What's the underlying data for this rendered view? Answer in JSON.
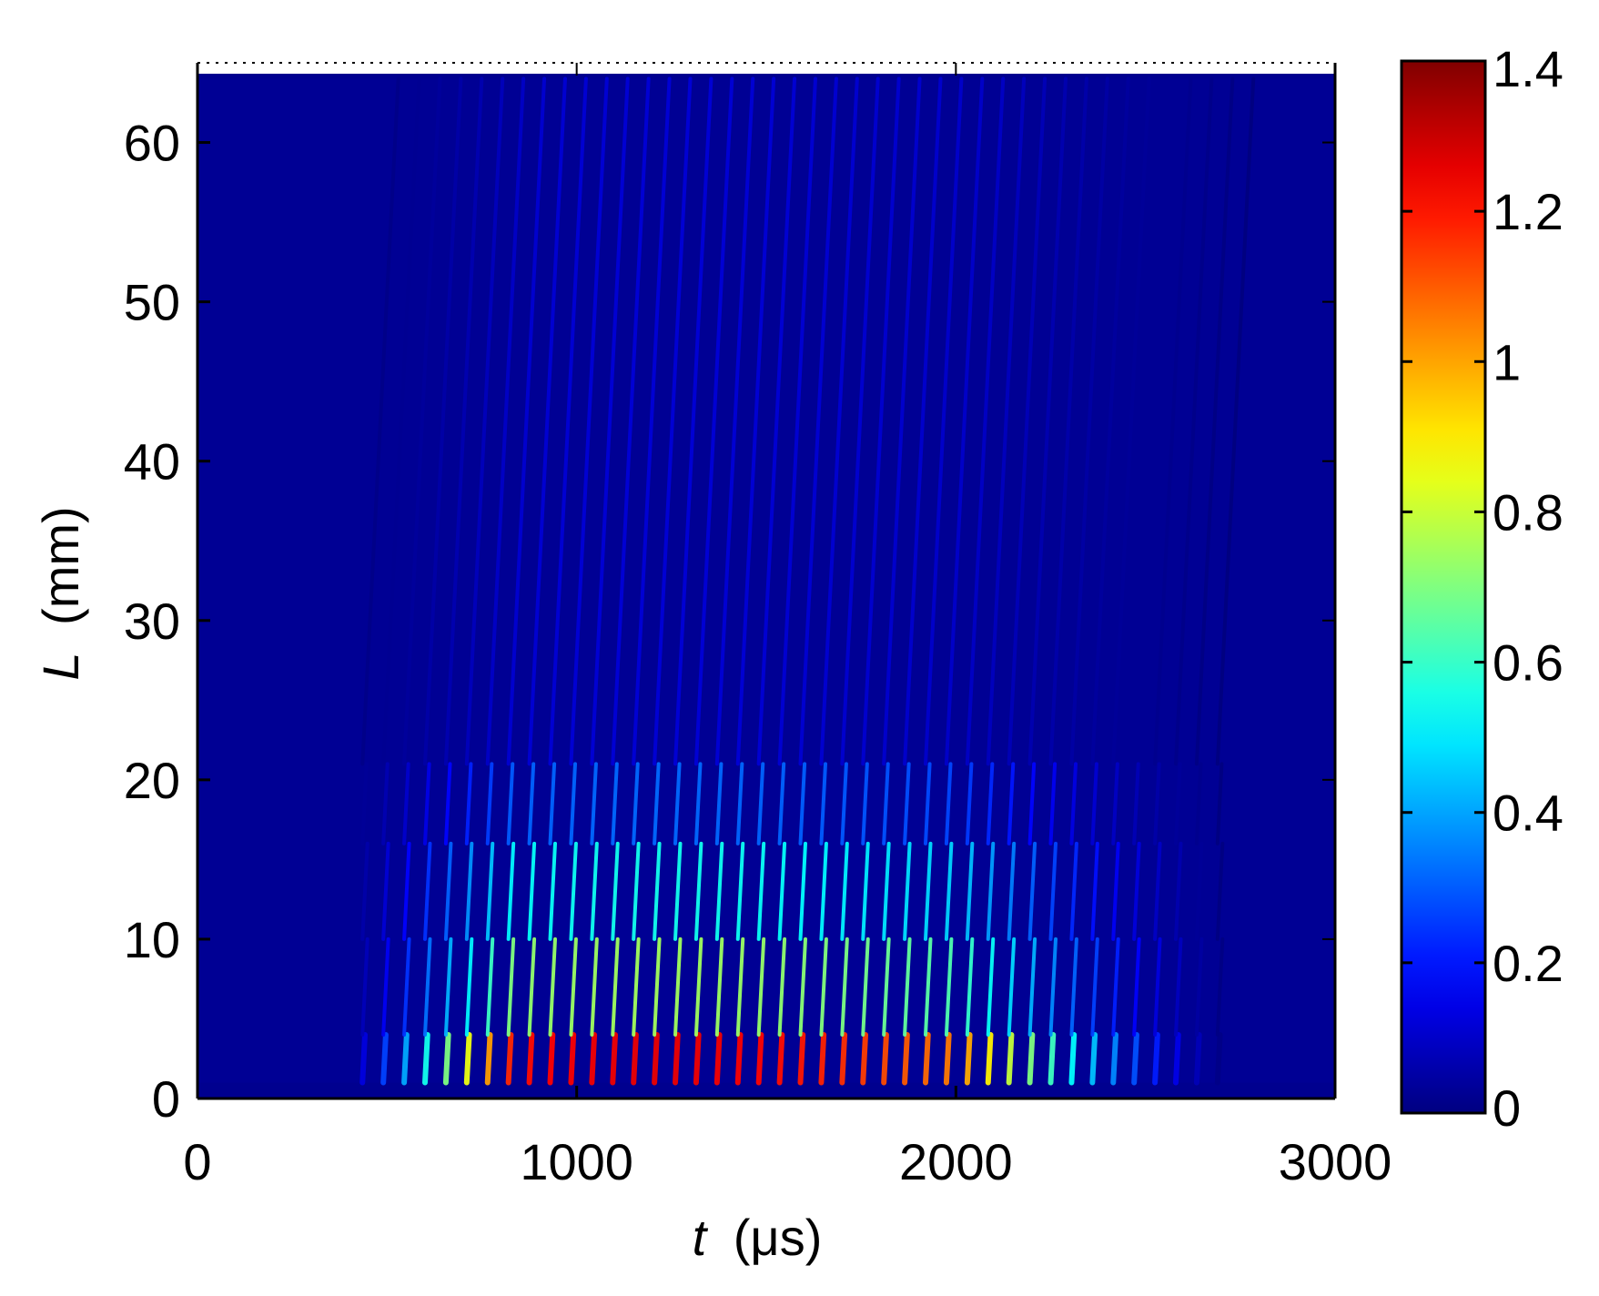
{
  "chart_data": {
    "type": "heatmap",
    "title": "",
    "xlabel": {
      "var": "t",
      "unit": "(μs)"
    },
    "ylabel": {
      "var": "L",
      "unit": "(mm)"
    },
    "xlim": [
      0,
      3000
    ],
    "ylim": [
      0,
      65
    ],
    "x_ticks": [
      0,
      1000,
      2000,
      3000
    ],
    "y_ticks": [
      0,
      10,
      20,
      30,
      40,
      50,
      60
    ],
    "x_tick_labels": [
      "0",
      "1000",
      "2000",
      "3000"
    ],
    "y_tick_labels": [
      "0",
      "10",
      "20",
      "30",
      "40",
      "50",
      "60"
    ],
    "colorbar": {
      "colormap": "jet",
      "range": [
        0,
        1.4
      ],
      "ticks": [
        0,
        0.2,
        0.4,
        0.6,
        0.8,
        1,
        1.2,
        1.4
      ],
      "tick_labels": [
        "0",
        "0.2",
        "0.4",
        "0.6",
        "0.8",
        "1",
        "1.2",
        "1.4"
      ]
    },
    "data_extent": {
      "t": [
        0,
        3000
      ],
      "L": [
        1,
        64
      ]
    },
    "description_of_field": {
      "background_value": 0,
      "oscillation_period_us": 55,
      "wave_onset_t_us": 380,
      "wave_fade_t_us": 2700,
      "peak_value_near_L0": 1.25,
      "peak_t_us": 1200,
      "bands": [
        {
          "L": [
            1,
            4
          ],
          "amplitude": 1.25
        },
        {
          "L": [
            4,
            10
          ],
          "amplitude": 0.75
        },
        {
          "L": [
            10,
            16
          ],
          "amplitude": 0.55
        },
        {
          "L": [
            16,
            21
          ],
          "amplitude": 0.32
        },
        {
          "L": [
            21,
            64
          ],
          "amplitude": 0.12
        }
      ]
    }
  },
  "colors": {
    "background": "#00008f",
    "frame": "#000000"
  }
}
